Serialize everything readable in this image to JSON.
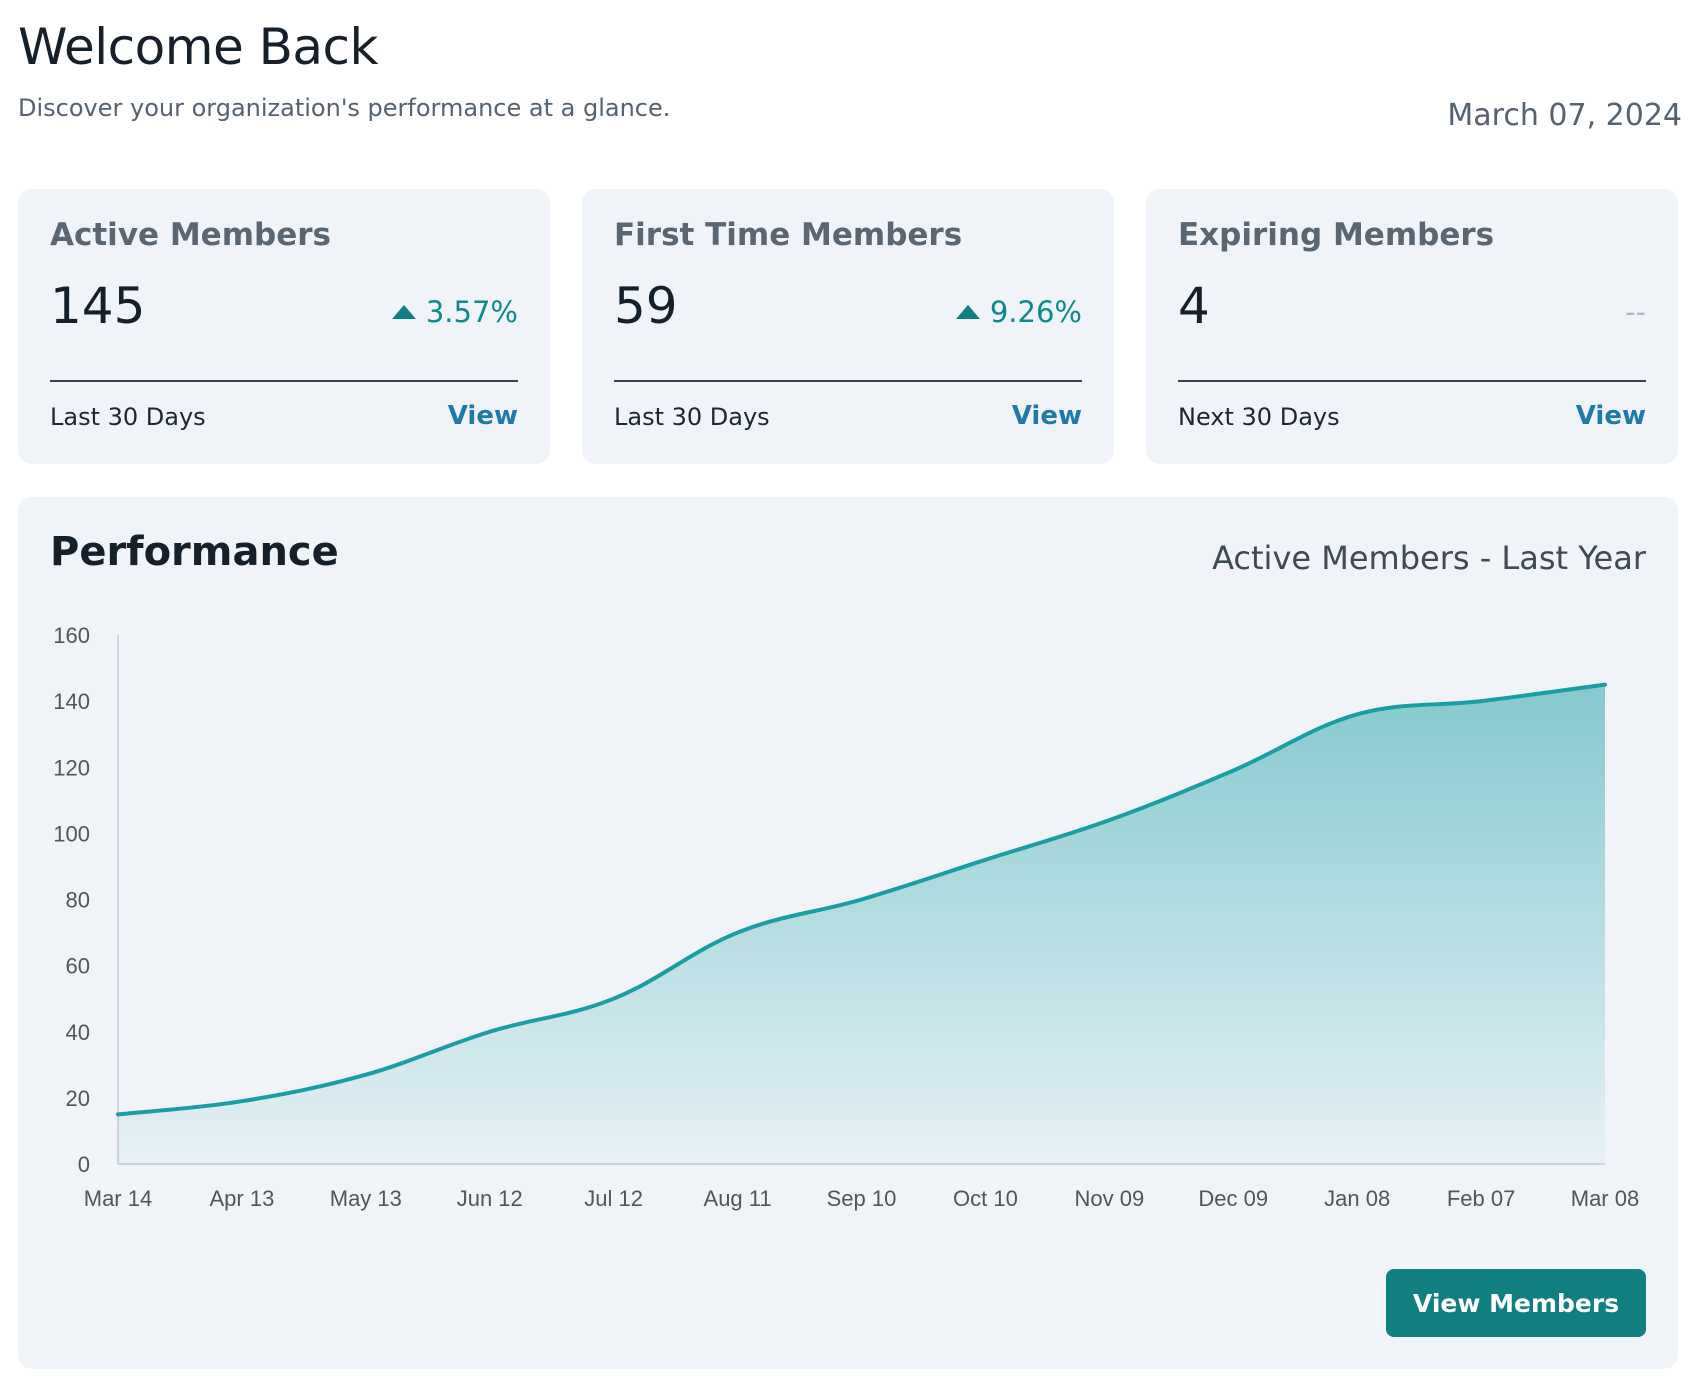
{
  "header": {
    "title": "Welcome Back",
    "subtitle": "Discover your organization's performance at a glance.",
    "date": "March 07, 2024"
  },
  "cards": [
    {
      "title": "Active Members",
      "value": "145",
      "change": "3.57%",
      "direction": "up",
      "period": "Last 30 Days",
      "link": "View"
    },
    {
      "title": "First Time Members",
      "value": "59",
      "change": "9.26%",
      "direction": "up",
      "period": "Last 30 Days",
      "link": "View"
    },
    {
      "title": "Expiring Members",
      "value": "4",
      "change": "--",
      "direction": "none",
      "period": "Next 30 Days",
      "link": "View"
    }
  ],
  "performance": {
    "title": "Performance",
    "series_label": "Active Members - Last Year",
    "button_label": "View Members"
  },
  "colors": {
    "accent": "#0f7f82",
    "line": "#1a9ea3",
    "link": "#1f7aaa",
    "card_bg": "#f0f4f9"
  },
  "chart_data": {
    "type": "area",
    "categories": [
      "Mar 14",
      "Apr 13",
      "May 13",
      "Jun 12",
      "Jul 12",
      "Aug 11",
      "Sep 10",
      "Oct 10",
      "Nov 09",
      "Dec 09",
      "Jan 08",
      "Feb 07",
      "Mar 08"
    ],
    "values": [
      15,
      19,
      27,
      40,
      50,
      70,
      80,
      92,
      104,
      119,
      136,
      140,
      145
    ],
    "title": "",
    "xlabel": "",
    "ylabel": "",
    "ylim": [
      0,
      160
    ],
    "yticks": [
      0,
      20,
      40,
      60,
      80,
      100,
      120,
      140,
      160
    ],
    "grid": false,
    "legend": "none"
  }
}
